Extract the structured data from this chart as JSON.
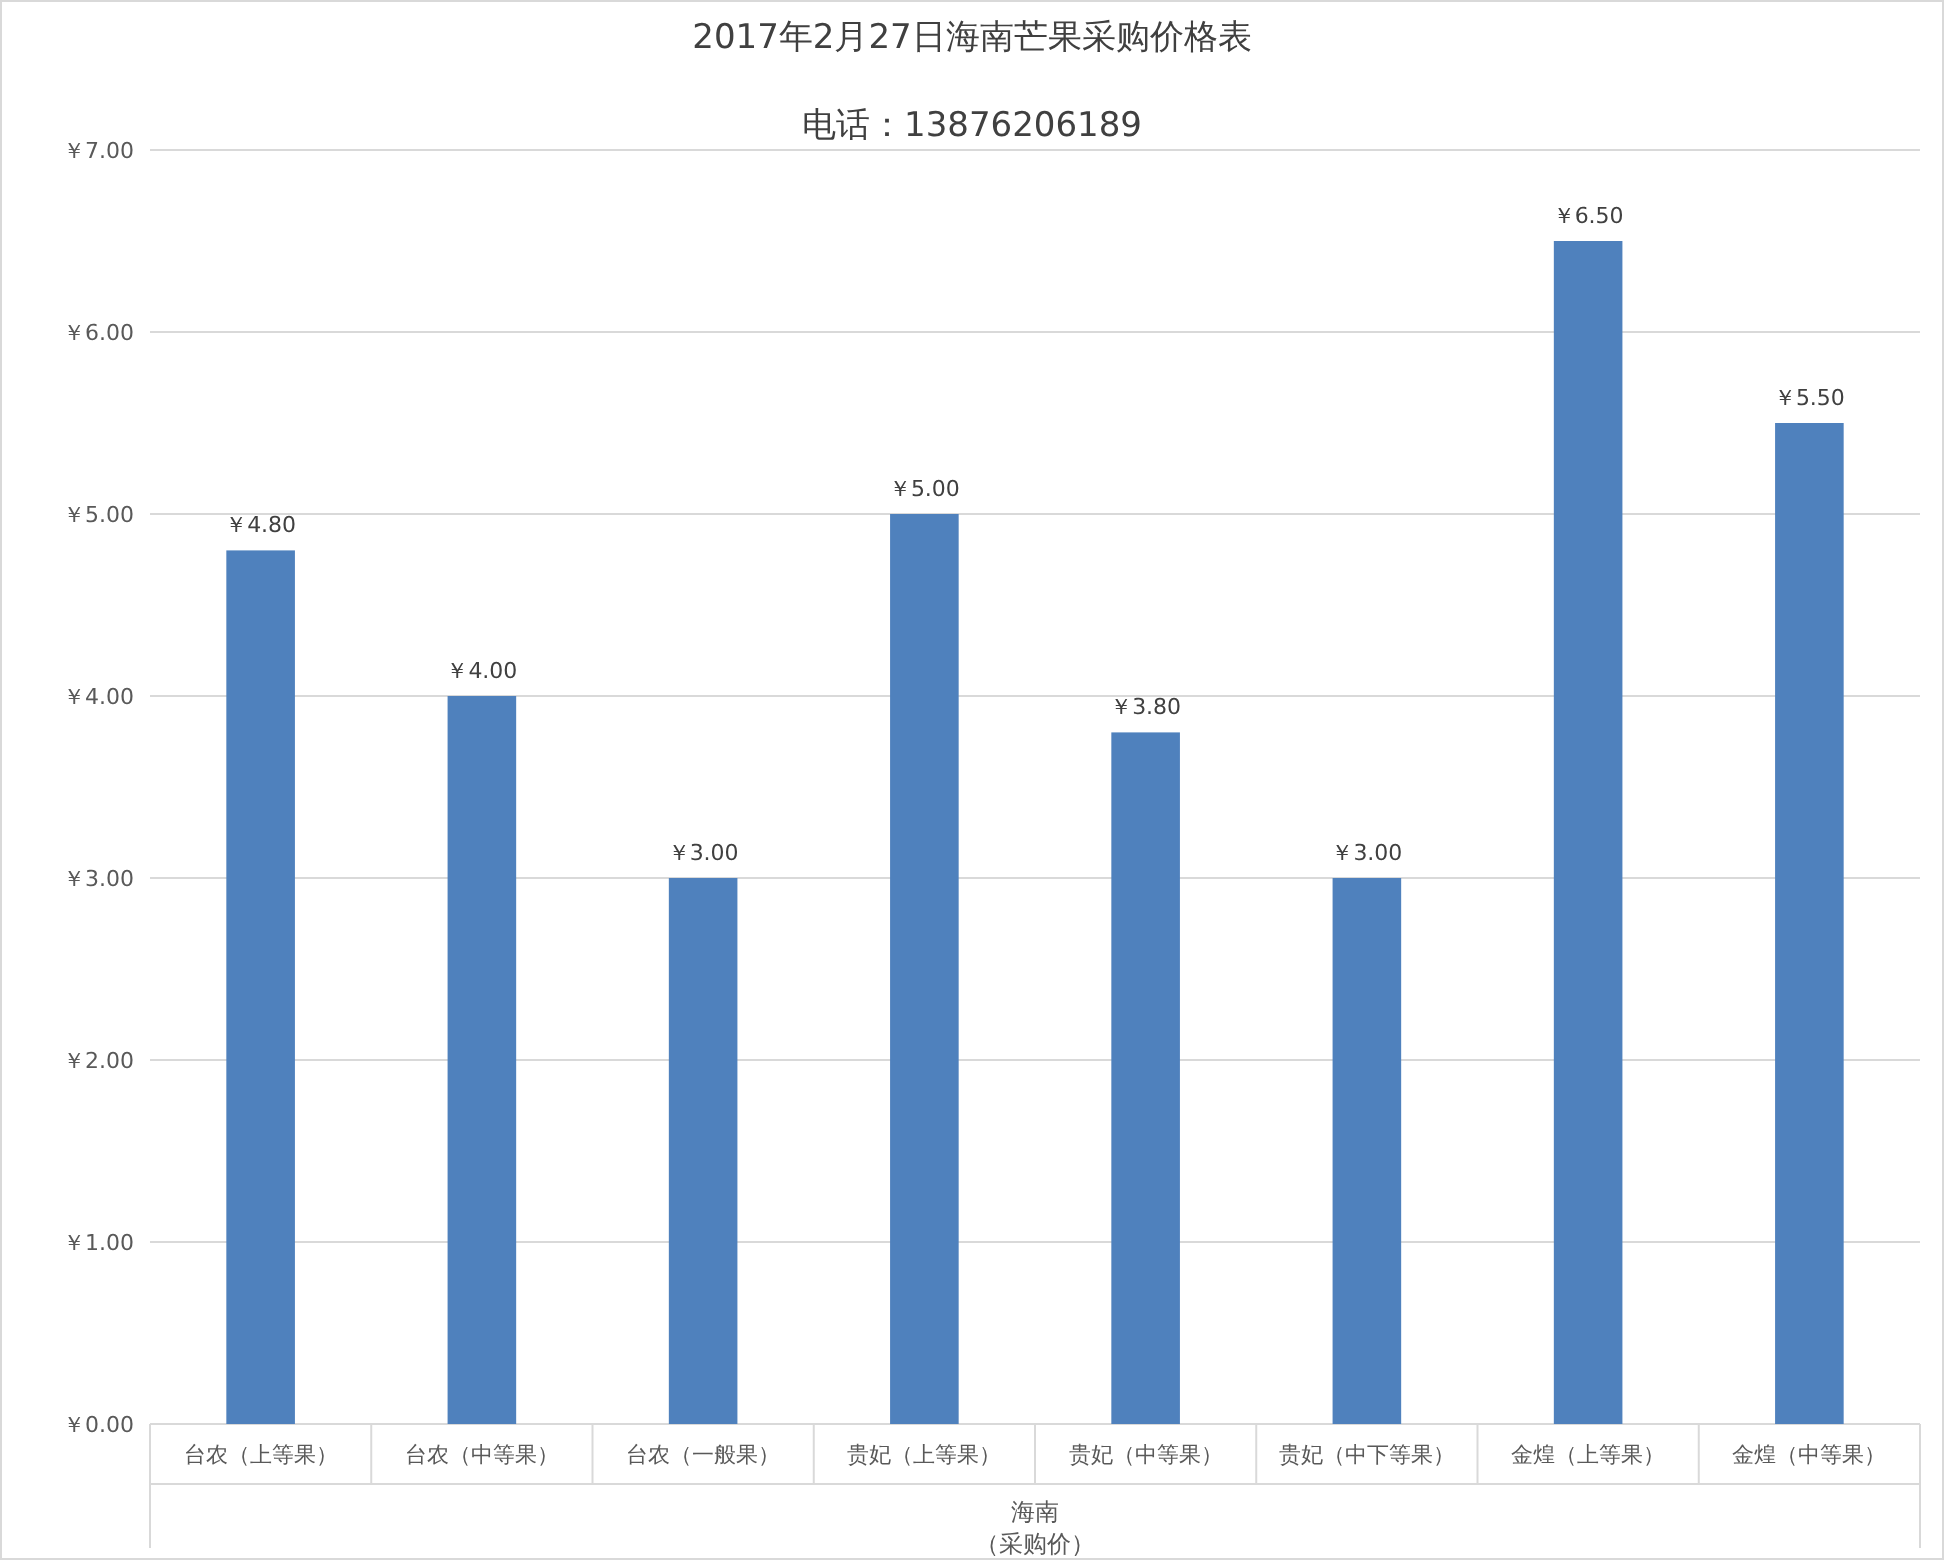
{
  "chart_data": {
    "type": "bar",
    "title": "2017年2月27日海南芒果采购价格表",
    "subtitle": "电话：13876206189",
    "categories": [
      "台农（上等果）",
      "台农（中等果）",
      "台农（一般果）",
      "贵妃（上等果）",
      "贵妃（中等果）",
      "贵妃（中下等果）",
      "金煌（上等果）",
      "金煌（中等果）"
    ],
    "values": [
      4.8,
      4.0,
      3.0,
      5.0,
      3.8,
      3.0,
      6.5,
      5.5
    ],
    "value_labels": [
      "￥4.80",
      "￥4.00",
      "￥3.00",
      "￥5.00",
      "￥3.80",
      "￥3.00",
      "￥6.50",
      "￥5.50"
    ],
    "color": "#4f81bd",
    "xlabel": "海南",
    "annotations": [
      "（采购价）"
    ],
    "ylim": [
      0,
      7
    ],
    "yticks": [
      {
        "value": 0,
        "label": "￥0.00"
      },
      {
        "value": 1,
        "label": "￥1.00"
      },
      {
        "value": 2,
        "label": "￥2.00"
      },
      {
        "value": 3,
        "label": "￥3.00"
      },
      {
        "value": 4,
        "label": "￥4.00"
      },
      {
        "value": 5,
        "label": "￥5.00"
      },
      {
        "value": 6,
        "label": "￥6.00"
      },
      {
        "value": 7,
        "label": "￥7.00"
      }
    ],
    "grid": "y"
  }
}
